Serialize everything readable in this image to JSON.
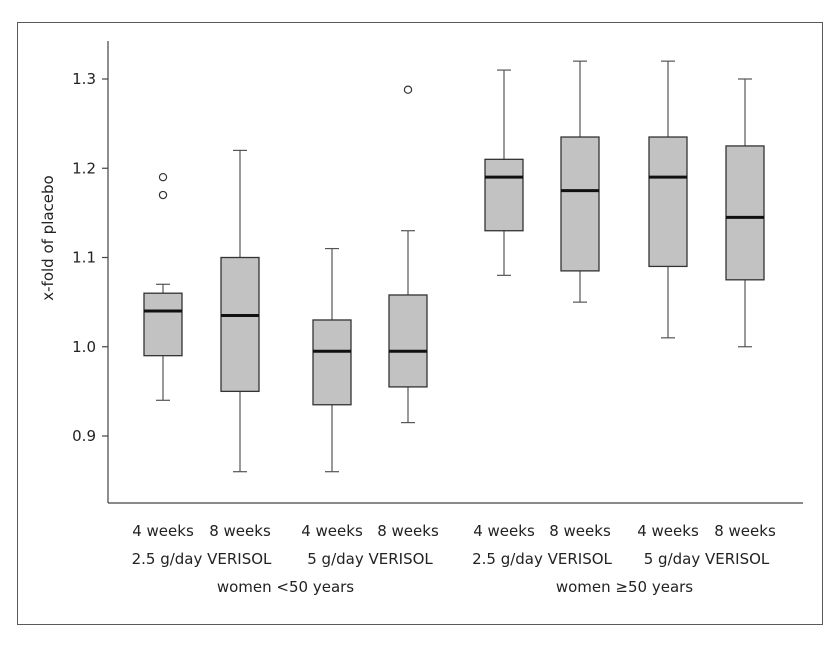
{
  "chart_data": {
    "type": "box",
    "ylabel": "x-fold of placebo",
    "ylim": [
      0.82,
      1.33
    ],
    "yticks": [
      0.9,
      1.0,
      1.1,
      1.2,
      1.3
    ],
    "ytick_labels": [
      "0.9",
      "1.0",
      "1.1",
      "1.2",
      "1.3"
    ],
    "time_labels": [
      "4 weeks",
      "8 weeks",
      "4 weeks",
      "8 weeks",
      "4 weeks",
      "8 weeks",
      "4 weeks",
      "8 weeks"
    ],
    "dose_labels": [
      "2.5 g/day VERISOL",
      "5 g/day VERISOL",
      "2.5 g/day VERISOL",
      "5 g/day VERISOL"
    ],
    "age_labels": [
      "women <50 years",
      "women ≥50 years"
    ],
    "boxes": [
      {
        "min": 0.94,
        "q1": 0.99,
        "median": 1.04,
        "q3": 1.06,
        "max": 1.07,
        "outliers": [
          1.17,
          1.19
        ]
      },
      {
        "min": 0.86,
        "q1": 0.95,
        "median": 1.035,
        "q3": 1.1,
        "max": 1.22,
        "outliers": []
      },
      {
        "min": 0.86,
        "q1": 0.935,
        "median": 0.995,
        "q3": 1.03,
        "max": 1.11,
        "outliers": []
      },
      {
        "min": 0.915,
        "q1": 0.955,
        "median": 0.995,
        "q3": 1.058,
        "max": 1.13,
        "outliers": [
          1.288
        ]
      },
      {
        "min": 1.08,
        "q1": 1.13,
        "median": 1.19,
        "q3": 1.21,
        "max": 1.31,
        "outliers": []
      },
      {
        "min": 1.05,
        "q1": 1.085,
        "median": 1.175,
        "q3": 1.235,
        "max": 1.32,
        "outliers": []
      },
      {
        "min": 1.01,
        "q1": 1.09,
        "median": 1.19,
        "q3": 1.235,
        "max": 1.32,
        "outliers": []
      },
      {
        "min": 1.0,
        "q1": 1.075,
        "median": 1.145,
        "q3": 1.225,
        "max": 1.3,
        "outliers": []
      }
    ],
    "box_color": "#c2c2c2",
    "grid": false
  }
}
